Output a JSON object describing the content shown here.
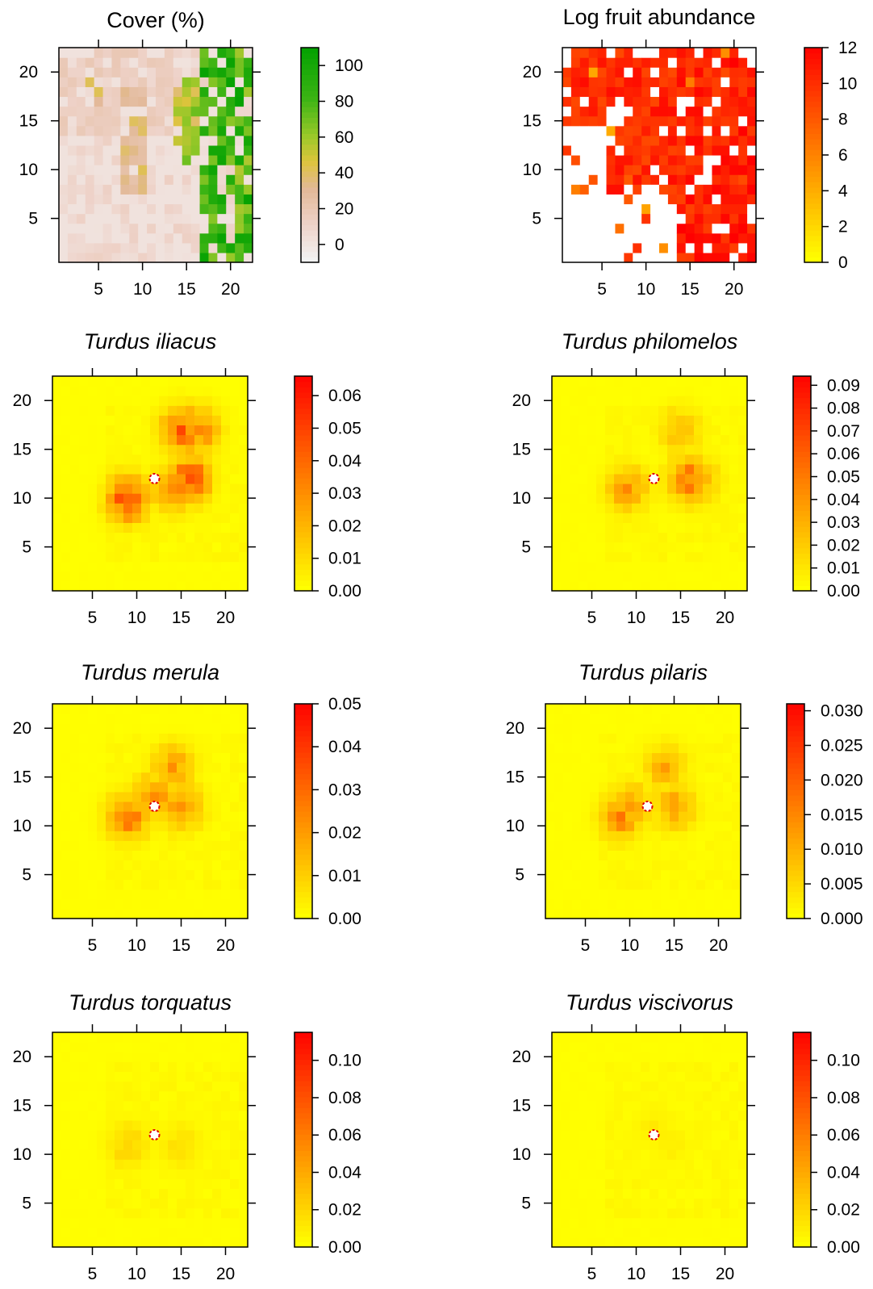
{
  "figure": {
    "grid_size": 22,
    "axis_ticks": [
      5,
      10,
      15,
      20
    ],
    "marker_cell": [
      12,
      12
    ]
  },
  "chart_data": [
    {
      "type": "heatmap",
      "title": "Cover (%)",
      "title_style": "normal",
      "palette": "terrain",
      "colorbar_ticks": [
        "100",
        "80",
        "60",
        "40",
        "20",
        "0"
      ],
      "colorbar_values": [
        100,
        80,
        60,
        40,
        20,
        0
      ],
      "zlim": [
        -10,
        110
      ],
      "xlim": [
        0.5,
        22.5
      ],
      "ylim": [
        0.5,
        22.5
      ],
      "description_pattern": "cover high (green) along east edge x=17-22, scattered patches near x=8-16 y=12-19, pale pink elsewhere",
      "regions": [
        {
          "x": [
            17,
            22
          ],
          "y": [
            1,
            22
          ],
          "value": 90
        },
        {
          "x": [
            14,
            16
          ],
          "y": [
            11,
            19
          ],
          "value": 60
        },
        {
          "x": [
            8,
            10
          ],
          "y": [
            8,
            18
          ],
          "value": 35
        },
        {
          "x": [
            4,
            5
          ],
          "y": [
            17,
            19
          ],
          "value": 40
        },
        {
          "x": [
            1,
            13
          ],
          "y": [
            14,
            22
          ],
          "value": 15
        }
      ],
      "marker": false
    },
    {
      "type": "heatmap",
      "title": "Log fruit abundance",
      "title_style": "normal",
      "palette": "heat",
      "colorbar_ticks": [
        "12",
        "10",
        "8",
        "6",
        "4",
        "2",
        "0"
      ],
      "colorbar_values": [
        12,
        10,
        8,
        6,
        4,
        2,
        0
      ],
      "zlim": [
        0,
        12
      ],
      "xlim": [
        0.5,
        22.5
      ],
      "ylim": [
        0.5,
        22.5
      ],
      "regions": [
        {
          "x": [
            14,
            22
          ],
          "y": [
            1,
            22
          ],
          "value": 10.5
        },
        {
          "x": [
            6,
            13
          ],
          "y": [
            8,
            22
          ],
          "value": 10
        },
        {
          "x": [
            1,
            5
          ],
          "y": [
            15,
            22
          ],
          "value": 10
        }
      ],
      "marker": false
    },
    {
      "type": "heatmap",
      "title": "Turdus iliacus",
      "title_style": "italic",
      "palette": "heat",
      "colorbar_ticks": [
        "0.06",
        "0.05",
        "0.04",
        "0.03",
        "0.02",
        "0.01",
        "0.00"
      ],
      "colorbar_values": [
        0.06,
        0.05,
        0.04,
        0.03,
        0.02,
        0.01,
        0.0
      ],
      "zlim": [
        0,
        0.066
      ],
      "xlim": [
        0.5,
        22.5
      ],
      "ylim": [
        0.5,
        22.5
      ],
      "hotspots": [
        {
          "x": 9,
          "y": 10,
          "value": 0.045
        },
        {
          "x": 15,
          "y": 17,
          "value": 0.04
        },
        {
          "x": 16,
          "y": 12,
          "value": 0.045
        },
        {
          "x": 14,
          "y": 11,
          "value": 0.03
        },
        {
          "x": 17,
          "y": 17,
          "value": 0.03
        }
      ],
      "marker": true
    },
    {
      "type": "heatmap",
      "title": "Turdus philomelos",
      "title_style": "italic",
      "palette": "heat",
      "colorbar_ticks": [
        "0.09",
        "0.08",
        "0.07",
        "0.06",
        "0.05",
        "0.04",
        "0.03",
        "0.02",
        "0.01",
        "0.00"
      ],
      "colorbar_values": [
        0.09,
        0.08,
        0.07,
        0.06,
        0.05,
        0.04,
        0.03,
        0.02,
        0.01,
        0.0
      ],
      "zlim": [
        0,
        0.094
      ],
      "xlim": [
        0.5,
        22.5
      ],
      "ylim": [
        0.5,
        22.5
      ],
      "hotspots": [
        {
          "x": 16,
          "y": 12,
          "value": 0.05
        },
        {
          "x": 9,
          "y": 11,
          "value": 0.035
        },
        {
          "x": 17,
          "y": 12,
          "value": 0.03
        },
        {
          "x": 15,
          "y": 17,
          "value": 0.025
        }
      ],
      "marker": true
    },
    {
      "type": "heatmap",
      "title": "Turdus merula",
      "title_style": "italic",
      "palette": "heat",
      "colorbar_ticks": [
        "0.05",
        "0.04",
        "0.03",
        "0.02",
        "0.01",
        "0.00"
      ],
      "colorbar_values": [
        0.05,
        0.04,
        0.03,
        0.02,
        0.01,
        0.0
      ],
      "zlim": [
        0,
        0.05
      ],
      "xlim": [
        0.5,
        22.5
      ],
      "ylim": [
        0.5,
        22.5
      ],
      "hotspots": [
        {
          "x": 9,
          "y": 11,
          "value": 0.025
        },
        {
          "x": 15,
          "y": 12,
          "value": 0.022
        },
        {
          "x": 14,
          "y": 16,
          "value": 0.018
        },
        {
          "x": 12,
          "y": 13,
          "value": 0.02
        }
      ],
      "marker": true
    },
    {
      "type": "heatmap",
      "title": "Turdus pilaris",
      "title_style": "italic",
      "palette": "heat",
      "colorbar_ticks": [
        "0.030",
        "0.025",
        "0.020",
        "0.015",
        "0.010",
        "0.005",
        "0.000"
      ],
      "colorbar_values": [
        0.03,
        0.025,
        0.02,
        0.015,
        0.01,
        0.005,
        0.0
      ],
      "zlim": [
        0,
        0.031
      ],
      "xlim": [
        0.5,
        22.5
      ],
      "ylim": [
        0.5,
        22.5
      ],
      "hotspots": [
        {
          "x": 9,
          "y": 11,
          "value": 0.014
        },
        {
          "x": 10,
          "y": 12,
          "value": 0.012
        },
        {
          "x": 15,
          "y": 12,
          "value": 0.011
        },
        {
          "x": 14,
          "y": 16,
          "value": 0.01
        }
      ],
      "marker": true
    },
    {
      "type": "heatmap",
      "title": "Turdus torquatus",
      "title_style": "italic",
      "palette": "heat",
      "colorbar_ticks": [
        "0.10",
        "0.08",
        "0.06",
        "0.04",
        "0.02",
        "0.00"
      ],
      "colorbar_values": [
        0.1,
        0.08,
        0.06,
        0.04,
        0.02,
        0.0
      ],
      "zlim": [
        0,
        0.115
      ],
      "xlim": [
        0.5,
        22.5
      ],
      "ylim": [
        0.5,
        22.5
      ],
      "hotspots": [
        {
          "x": 9,
          "y": 11,
          "value": 0.02
        },
        {
          "x": 15,
          "y": 11,
          "value": 0.015
        }
      ],
      "marker": true
    },
    {
      "type": "heatmap",
      "title": "Turdus viscivorus",
      "title_style": "italic",
      "palette": "heat",
      "colorbar_ticks": [
        "0.10",
        "0.08",
        "0.06",
        "0.04",
        "0.02",
        "0.00"
      ],
      "colorbar_values": [
        0.1,
        0.08,
        0.06,
        0.04,
        0.02,
        0.0
      ],
      "zlim": [
        0,
        0.115
      ],
      "xlim": [
        0.5,
        22.5
      ],
      "ylim": [
        0.5,
        22.5
      ],
      "hotspots": [
        {
          "x": 12,
          "y": 13,
          "value": 0.008
        },
        {
          "x": 14,
          "y": 11,
          "value": 0.007
        }
      ],
      "marker": true
    }
  ]
}
